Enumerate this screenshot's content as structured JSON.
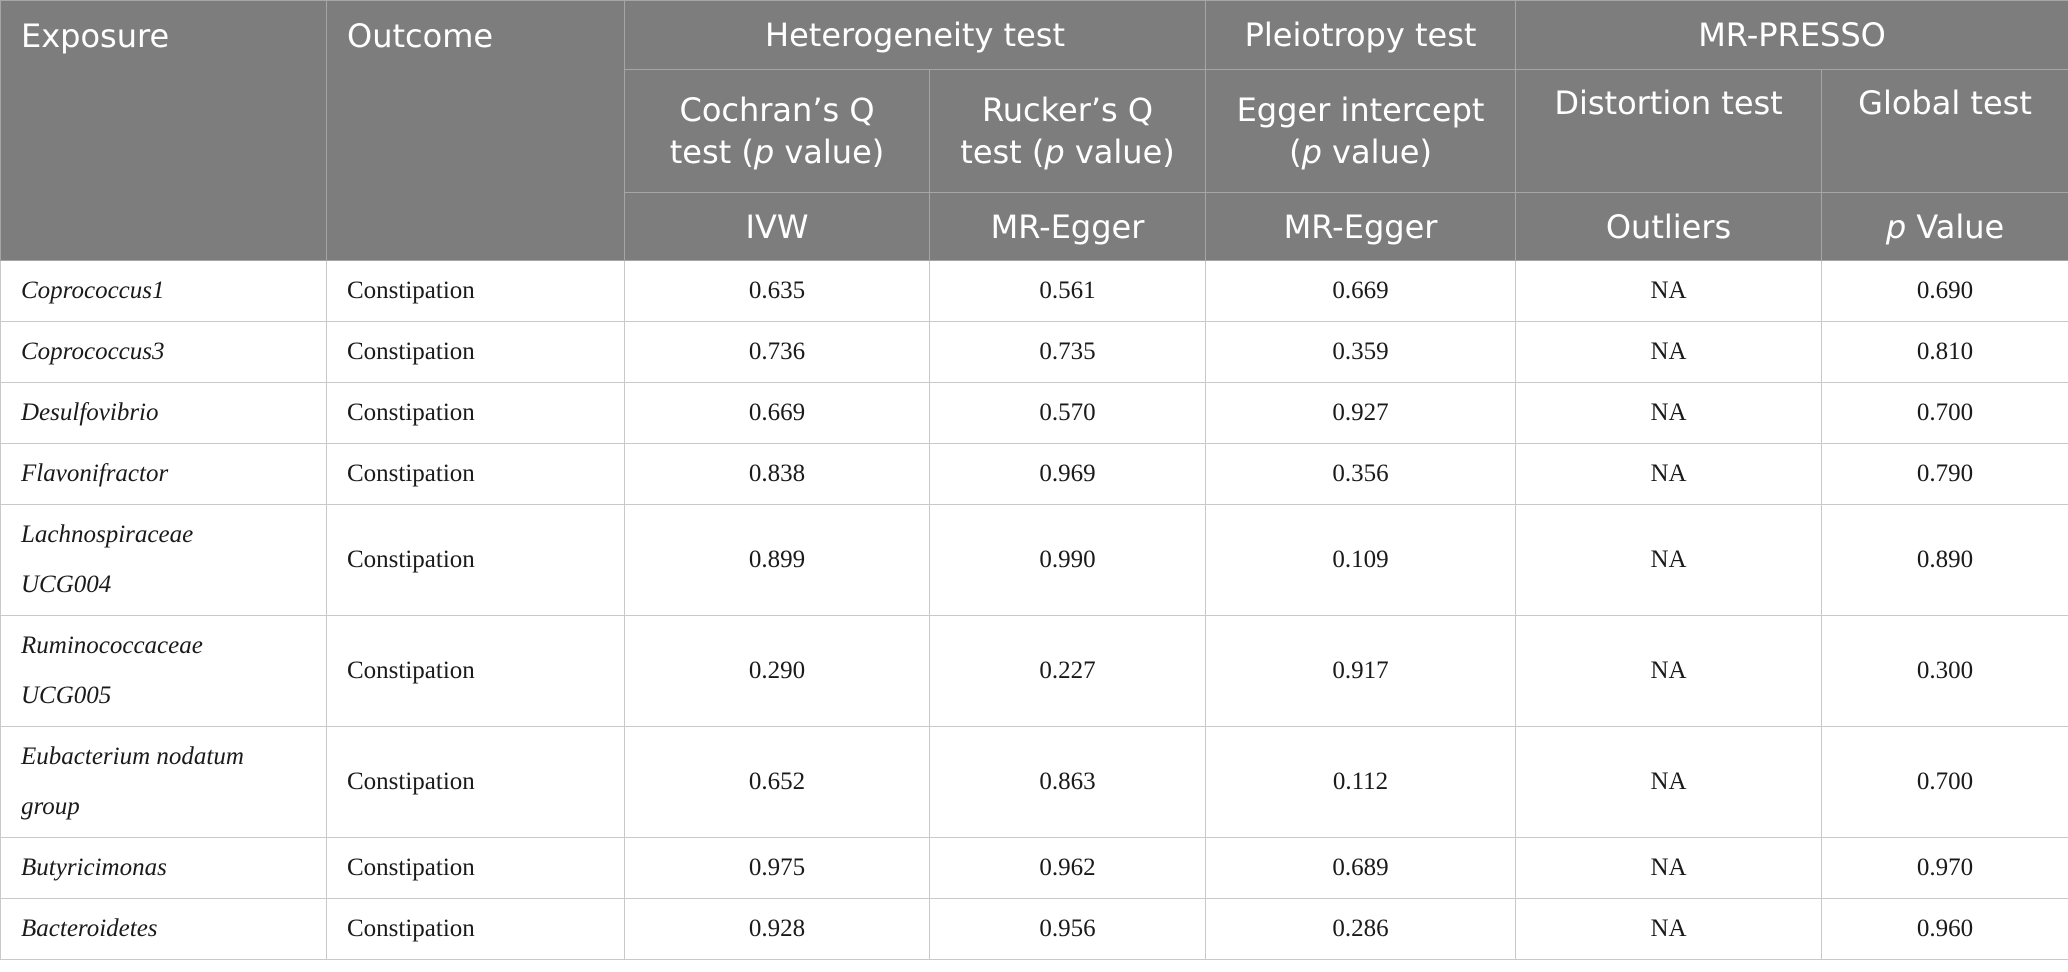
{
  "header": {
    "exposure": "Exposure",
    "outcome": "Outcome",
    "heterogeneity": "Heterogeneity test",
    "pleiotropy": "Pleiotropy test",
    "mrpresso": "MR-PRESSO",
    "cochran_a": "Cochran’s Q",
    "cochran_b": "test (",
    "rucker_a": "Rucker’s Q",
    "rucker_b": "test (",
    "egger_a": "Egger intercept",
    "egger_b": "(",
    "p": "p",
    "value_close": " value)",
    "distortion": "Distortion test",
    "global": "Global test",
    "ivw": "IVW",
    "mregger1": "MR-Egger",
    "mregger2": "MR-Egger",
    "outliers": "Outliers",
    "pvalue_p": "p",
    "pvalue_rest": " Value"
  },
  "rows": [
    {
      "exposure": "Coprococcus1",
      "outcome": "Constipation",
      "ivw": "0.635",
      "rucker": "0.561",
      "egger": "0.669",
      "outliers": "NA",
      "global": "0.690"
    },
    {
      "exposure": "Coprococcus3",
      "outcome": "Constipation",
      "ivw": "0.736",
      "rucker": "0.735",
      "egger": "0.359",
      "outliers": "NA",
      "global": "0.810"
    },
    {
      "exposure": "Desulfovibrio",
      "outcome": "Constipation",
      "ivw": "0.669",
      "rucker": "0.570",
      "egger": "0.927",
      "outliers": "NA",
      "global": "0.700"
    },
    {
      "exposure": "Flavonifractor",
      "outcome": "Constipation",
      "ivw": "0.838",
      "rucker": "0.969",
      "egger": "0.356",
      "outliers": "NA",
      "global": "0.790"
    },
    {
      "exposure_line1": "Lachnospiraceae",
      "exposure_line2": "UCG004",
      "outcome": "Constipation",
      "ivw": "0.899",
      "rucker": "0.990",
      "egger": "0.109",
      "outliers": "NA",
      "global": "0.890"
    },
    {
      "exposure_line1": "Ruminococcaceae",
      "exposure_line2": "UCG005",
      "outcome": "Constipation",
      "ivw": "0.290",
      "rucker": "0.227",
      "egger": "0.917",
      "outliers": "NA",
      "global": "0.300"
    },
    {
      "exposure_line1": "Eubacterium nodatum",
      "exposure_line2": "group",
      "outcome": "Constipation",
      "ivw": "0.652",
      "rucker": "0.863",
      "egger": "0.112",
      "outliers": "NA",
      "global": "0.700"
    },
    {
      "exposure": "Butyricimonas",
      "outcome": "Constipation",
      "ivw": "0.975",
      "rucker": "0.962",
      "egger": "0.689",
      "outliers": "NA",
      "global": "0.970"
    },
    {
      "exposure": "Bacteroidetes",
      "outcome": "Constipation",
      "ivw": "0.928",
      "rucker": "0.956",
      "egger": "0.286",
      "outliers": "NA",
      "global": "0.960"
    }
  ]
}
